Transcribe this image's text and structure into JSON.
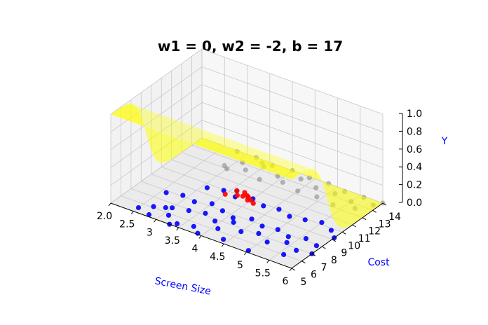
{
  "chart_data": {
    "type": "scatter",
    "title": "w1 = 0, w2 = -2, b = 17",
    "xlabel": "Screen Size",
    "ylabel": "Cost",
    "zlabel": "Y",
    "xlim": [
      2.0,
      6.0
    ],
    "ylim": [
      5,
      14
    ],
    "zlim": [
      0.0,
      1.0
    ],
    "x_ticks": [
      "2.0",
      "2.5",
      "3",
      "3.5",
      "4",
      "4.5",
      "5",
      "5.5",
      "6"
    ],
    "y_ticks": [
      "5",
      "6",
      "7",
      "8",
      "9",
      "10",
      "11",
      "12",
      "13",
      "14"
    ],
    "z_ticks": [
      "0.0",
      "0.2",
      "0.4",
      "0.6",
      "0.8",
      "1.0"
    ],
    "grid": true,
    "surface": {
      "function": "Y = sigmoid(w1*ScreenSize + w2*Cost + b)",
      "w1": 0,
      "w2": -2,
      "b": 17,
      "color": "#ffff00"
    },
    "colors": {
      "blue": "#0000ff",
      "red": "#ff0000",
      "gray": "#808080",
      "surface": "#ffff00",
      "axis_label": "#0000ff"
    },
    "series": [
      {
        "color": "blue",
        "x": [
          2.5,
          2.8,
          3.1,
          3.4,
          3.7,
          3.0,
          3.3,
          3.6,
          3.9,
          4.2,
          4.5,
          4.8,
          5.1,
          5.4,
          5.7,
          6.0,
          2.6,
          2.9,
          3.2,
          3.5,
          3.8,
          4.1,
          4.4,
          4.7,
          5.0,
          5.3,
          5.6,
          5.9,
          3.1,
          3.4,
          3.7,
          4.0,
          4.3,
          4.6,
          4.9,
          5.2,
          5.5,
          5.8,
          2.7,
          2.9,
          3.3,
          3.9,
          4.4,
          5.0,
          5.6,
          6.0,
          3.6,
          4.1
        ],
        "y": [
          5.5,
          5.2,
          5.8,
          5.3,
          5.6,
          6.6,
          6.9,
          7.2,
          6.8,
          7.3,
          6.7,
          7.1,
          6.6,
          7.2,
          6.8,
          7.0,
          7.8,
          8.1,
          7.9,
          8.3,
          8.0,
          7.7,
          8.2,
          7.9,
          8.1,
          7.8,
          8.2,
          7.9,
          9.6,
          9.9,
          9.7,
          10.1,
          9.8,
          10.0,
          9.7,
          9.9,
          10.2,
          9.8,
          6.1,
          6.4,
          5.0,
          5.1,
          5.4,
          5.2,
          6.0,
          9.2,
          10.3,
          6.2
        ],
        "z": [
          0,
          0,
          0,
          0,
          0,
          0,
          0,
          0,
          0,
          0,
          0,
          0,
          0,
          0,
          0,
          0,
          0,
          0,
          0,
          0,
          0,
          0,
          0,
          0,
          0,
          0,
          0,
          0,
          0,
          0,
          0,
          0,
          0,
          0,
          0,
          0,
          0,
          0,
          0,
          0,
          0,
          0,
          0,
          0,
          0,
          0,
          0,
          0
        ]
      },
      {
        "color": "red",
        "x": [
          3.5,
          3.7,
          3.9,
          4.1,
          3.6,
          3.8,
          4.0,
          3.75,
          3.95,
          3.85
        ],
        "y": [
          9.6,
          9.9,
          10.1,
          9.7,
          10.3,
          10.0,
          9.9,
          10.4,
          9.8,
          10.2
        ],
        "z": [
          0,
          0,
          0,
          0,
          0,
          0,
          0,
          0,
          0,
          0
        ]
      },
      {
        "color": "gray",
        "x": [
          2.9,
          3.3,
          3.7,
          4.1,
          4.5,
          4.9,
          5.3,
          5.7,
          3.1,
          3.5,
          3.9,
          4.3,
          4.7,
          5.1,
          5.5,
          5.9,
          2.8,
          3.2,
          3.6,
          4.0,
          4.4,
          4.8,
          5.2,
          5.6,
          6.0,
          3.0,
          3.4
        ],
        "y": [
          12.2,
          12.5,
          12.1,
          12.6,
          12.3,
          12.4,
          12.2,
          12.6,
          13.1,
          13.4,
          13.0,
          13.5,
          13.2,
          13.3,
          13.1,
          13.5,
          13.9,
          14.0,
          13.8,
          14.0,
          13.9,
          14.0,
          13.8,
          13.9,
          14.0,
          12.0,
          13.7
        ],
        "z": [
          0,
          0,
          0,
          0,
          0,
          0,
          0,
          0,
          0,
          0,
          0,
          0,
          0,
          0,
          0,
          0,
          0,
          0,
          0,
          0,
          0,
          0,
          0,
          0,
          0,
          0,
          0
        ]
      }
    ]
  }
}
